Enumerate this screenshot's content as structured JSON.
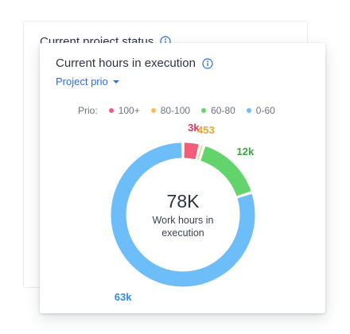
{
  "back_card": {
    "title": "Current project status"
  },
  "card": {
    "title": "Current hours in execution",
    "dropdown_label": "Project prio",
    "legend_title": "Prio:",
    "legend": [
      {
        "label": "100+",
        "color": "#f05e7a"
      },
      {
        "label": "80-100",
        "color": "#f8c04f"
      },
      {
        "label": "60-80",
        "color": "#63d36b"
      },
      {
        "label": "0-60",
        "color": "#6cbdf8"
      }
    ],
    "center_value": "78K",
    "center_caption": "Work hours in execution"
  },
  "chart_data": {
    "type": "pie",
    "title": "",
    "series": [
      {
        "name": "100+",
        "value": 3000,
        "label": "3k",
        "color": "#f05e7a",
        "label_color": "#e0355a"
      },
      {
        "name": "80-100",
        "value": 453,
        "label": "453",
        "color": "#f8c04f",
        "label_color": "#e8a72a"
      },
      {
        "name": "60-80",
        "value": 12000,
        "label": "12k",
        "color": "#63d36b",
        "label_color": "#3ba43f"
      },
      {
        "name": "0-60",
        "value": 63000,
        "label": "63k",
        "color": "#6cbdf8",
        "label_color": "#2f8ee0"
      }
    ],
    "total": 78000
  }
}
